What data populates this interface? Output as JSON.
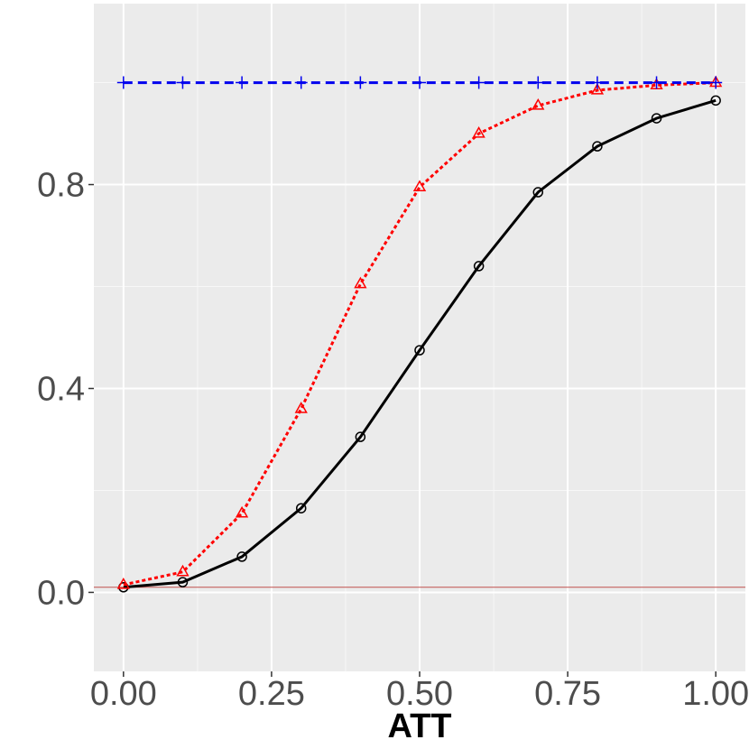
{
  "chart_data": {
    "type": "line",
    "title": "",
    "xlabel": "ATT",
    "ylabel": "",
    "xlim": [
      -0.05,
      1.05
    ],
    "ylim": [
      -0.155,
      1.155
    ],
    "x_ticks": [
      0.0,
      0.25,
      0.5,
      0.75,
      1.0
    ],
    "x_tick_labels": [
      "0.00",
      "0.25",
      "0.50",
      "0.75",
      "1.00"
    ],
    "y_ticks": [
      0.0,
      0.4,
      0.8
    ],
    "y_tick_labels": [
      "0.0",
      "0.4",
      "0.8"
    ],
    "grid": true,
    "legend": "none",
    "reference_line": {
      "y": 0.01,
      "color": "#c0504d"
    },
    "x": [
      0.0,
      0.1,
      0.2,
      0.3,
      0.4,
      0.5,
      0.6,
      0.7,
      0.8,
      0.9,
      1.0
    ],
    "series": [
      {
        "values": [
          0.01,
          0.02,
          0.07,
          0.165,
          0.305,
          0.475,
          0.64,
          0.785,
          0.875,
          0.93,
          0.965
        ],
        "color": "#000000",
        "dash": "solid",
        "marker": "circle"
      },
      {
        "values": [
          0.015,
          0.04,
          0.155,
          0.36,
          0.605,
          0.795,
          0.9,
          0.955,
          0.985,
          0.995,
          1.0
        ],
        "color": "#ff0000",
        "dash": "dotted",
        "marker": "triangle"
      },
      {
        "values": [
          1.0,
          1.0,
          1.0,
          1.0,
          1.0,
          1.0,
          1.0,
          1.0,
          1.0,
          1.0,
          1.0
        ],
        "color": "#0000ee",
        "dash": "dashed",
        "marker": "plus"
      }
    ]
  }
}
